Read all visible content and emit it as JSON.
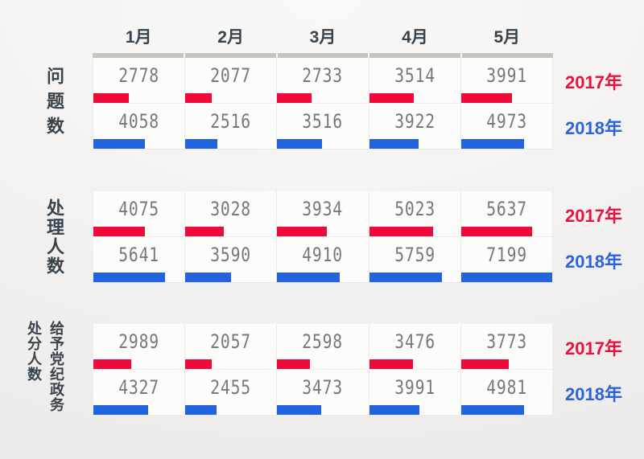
{
  "columns": [
    "1月",
    "2月",
    "3月",
    "4月",
    "5月"
  ],
  "legend": {
    "y2017": "2017年",
    "y2018": "2018年"
  },
  "colors": {
    "red_bar": "#f00a3c",
    "blue_bar": "#2463e0",
    "red_label": "#e8123f",
    "blue_label": "#2a63dc",
    "top_rule": "#c6c6c1",
    "number_text": "#787878",
    "dark_text": "#37434d"
  },
  "chart_data": {
    "type": "bar",
    "categories": [
      "1月",
      "2月",
      "3月",
      "4月",
      "5月"
    ],
    "bar_scale_max": 7199,
    "legend_position": "right",
    "sections": [
      {
        "label": "问题数",
        "series": [
          {
            "name": "2017年",
            "color": "#f00a3c",
            "values": [
              2778,
              2077,
              2733,
              3514,
              3991
            ]
          },
          {
            "name": "2018年",
            "color": "#2463e0",
            "values": [
              4058,
              2516,
              3516,
              3922,
              4973
            ]
          }
        ]
      },
      {
        "label": "处理人数",
        "series": [
          {
            "name": "2017年",
            "color": "#f00a3c",
            "values": [
              4075,
              3028,
              3934,
              5023,
              5637
            ]
          },
          {
            "name": "2018年",
            "color": "#2463e0",
            "values": [
              5641,
              3590,
              4910,
              5759,
              7199
            ]
          }
        ]
      },
      {
        "label": "给予党纪政务处分人数",
        "label_lines": [
          "处分人数",
          "给予党纪政务"
        ],
        "series": [
          {
            "name": "2017年",
            "color": "#f00a3c",
            "values": [
              2989,
              2057,
              2598,
              3476,
              3773
            ]
          },
          {
            "name": "2018年",
            "color": "#2463e0",
            "values": [
              4327,
              2455,
              3473,
              3991,
              4981
            ]
          }
        ]
      }
    ]
  }
}
